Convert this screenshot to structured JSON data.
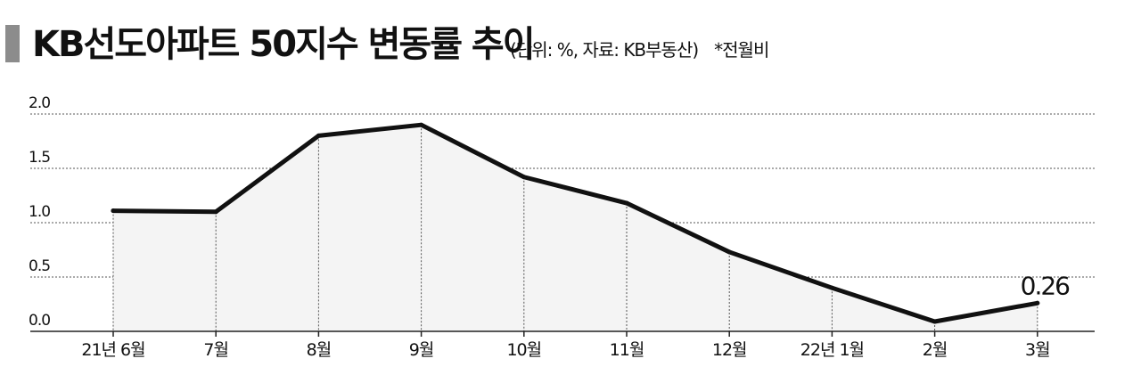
{
  "title": "KB선도아파트 50지수 변동률 추이",
  "subtitle": "(단위: %, 자료: KB부동산)",
  "note": "*전월비",
  "colors": {
    "line": "#111111",
    "area": "#f4f4f4",
    "grid": "#555555",
    "title_marker": "#8c8c8c"
  },
  "chart_data": {
    "type": "area",
    "categories": [
      "21년 6월",
      "7월",
      "8월",
      "9월",
      "10월",
      "11월",
      "12월",
      "22년 1월",
      "2월",
      "3월"
    ],
    "values": [
      1.11,
      1.1,
      1.8,
      1.9,
      1.42,
      1.18,
      0.73,
      0.4,
      0.09,
      0.26
    ],
    "ylim": [
      0,
      2
    ],
    "yticks": [
      "0.0",
      "0.5",
      "1.0",
      "1.5",
      "2.0"
    ],
    "grid": true,
    "annotations": [
      {
        "category": "3월",
        "text": "0.26"
      }
    ]
  }
}
